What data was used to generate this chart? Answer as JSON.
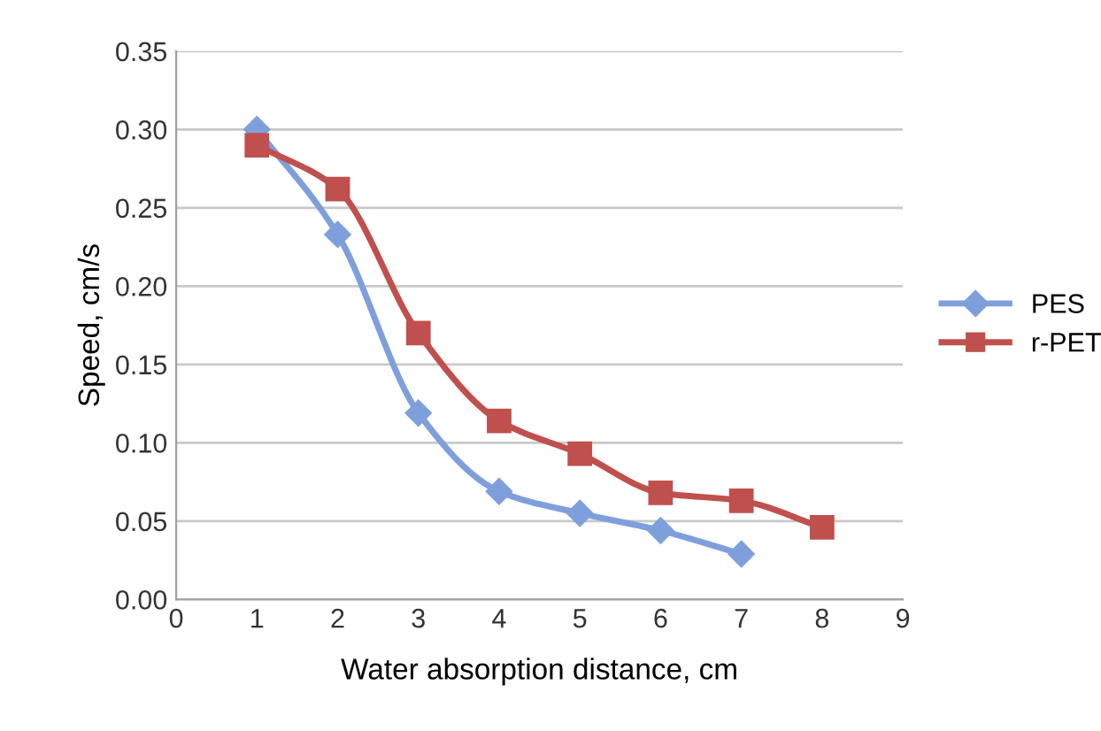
{
  "chart_data": {
    "type": "line",
    "xlabel": "Water absorption distance, cm",
    "ylabel": "Speed, cm/s",
    "xlim": [
      0,
      9
    ],
    "xticks": [
      0,
      1,
      2,
      3,
      4,
      5,
      6,
      7,
      8,
      9
    ],
    "ylim": [
      0,
      0.35
    ],
    "yticks": [
      {
        "value": 0,
        "label": "0.00"
      },
      {
        "value": 0.05,
        "label": "0.05"
      },
      {
        "value": 0.1,
        "label": "0.10"
      },
      {
        "value": 0.15,
        "label": "0.15"
      },
      {
        "value": 0.2,
        "label": "0.20"
      },
      {
        "value": 0.25,
        "label": "0.25"
      },
      {
        "value": 0.3,
        "label": "0.30"
      },
      {
        "value": 0.35,
        "label": "0.35"
      }
    ],
    "grid": "y",
    "legend": "right",
    "series": [
      {
        "name": "PES",
        "color": "#7f9fdc",
        "marker": "diamond",
        "x": [
          1,
          2,
          3,
          4,
          5,
          6,
          7
        ],
        "values": [
          0.3,
          0.233,
          0.119,
          0.069,
          0.055,
          0.044,
          0.029
        ]
      },
      {
        "name": "r-PET",
        "color": "#c0504d",
        "marker": "square",
        "x": [
          1,
          2,
          3,
          4,
          5,
          6,
          7,
          8
        ],
        "values": [
          0.29,
          0.262,
          0.17,
          0.114,
          0.093,
          0.068,
          0.063,
          0.046
        ]
      }
    ]
  }
}
